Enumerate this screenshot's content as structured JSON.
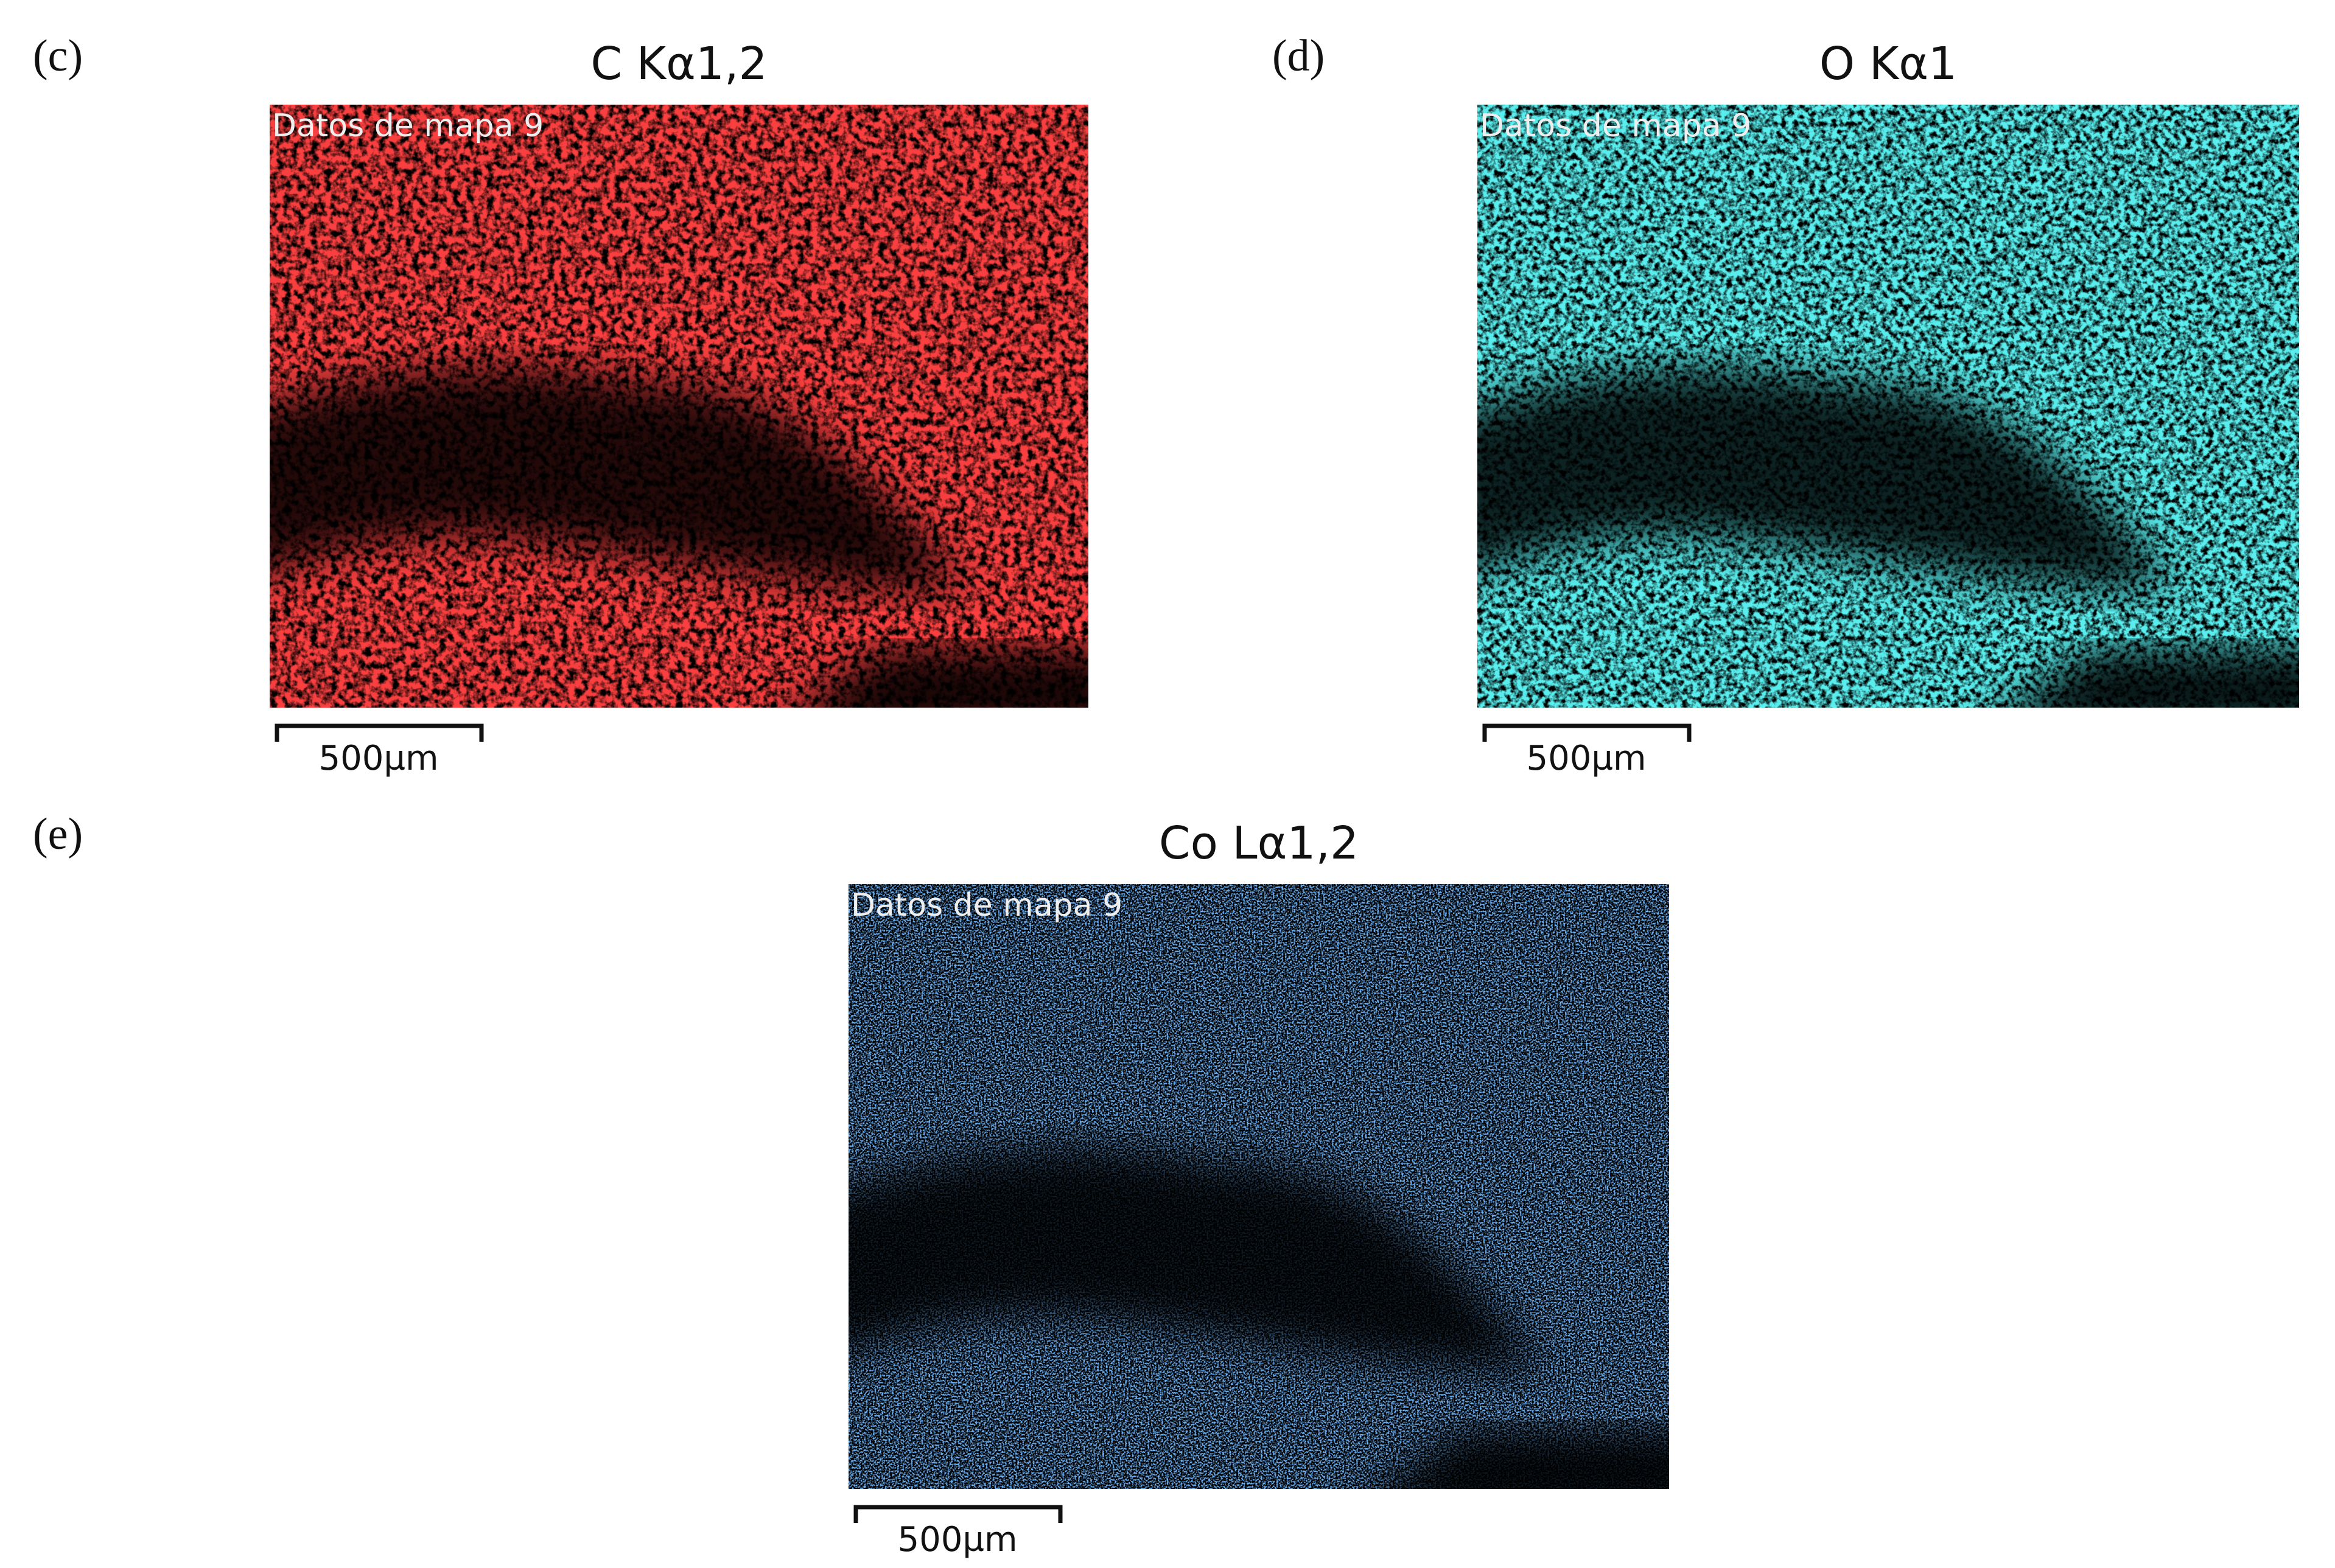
{
  "panels": [
    {
      "label": "(c)",
      "title": "C Kα1,2",
      "overlay": "Datos de mapa 9",
      "scale_bar": "500µm"
    },
    {
      "label": "(d)",
      "title": "O Kα1",
      "overlay": "Datos de mapa 9",
      "scale_bar": "500µm"
    },
    {
      "label": "(e)",
      "title": "Co Lα1,2",
      "overlay": "Datos de mapa 9",
      "scale_bar": "500µm"
    }
  ]
}
